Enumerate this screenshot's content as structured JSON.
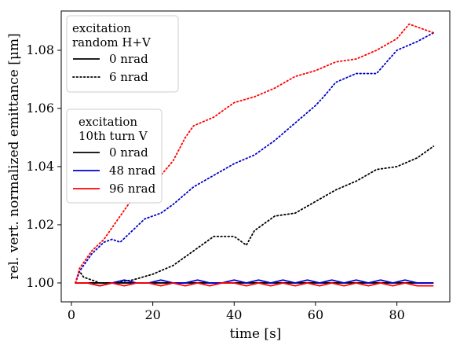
{
  "chart_data": {
    "type": "line",
    "xlabel": "time [s]",
    "ylabel": "rel. vert. normalized emittance [μm]",
    "xlim": [
      -2.5,
      93
    ],
    "ylim": [
      0.9935,
      1.0935
    ],
    "xticks": [
      0,
      20,
      40,
      60,
      80
    ],
    "yticks": [
      1.0,
      1.02,
      1.04,
      1.06,
      1.08
    ],
    "ytick_labels": [
      "1.00",
      "1.02",
      "1.04",
      "1.06",
      "1.08"
    ],
    "grid": false,
    "legends": [
      {
        "title_lines": [
          "excitation",
          "random H+V"
        ],
        "placement": "top-left",
        "entries": [
          {
            "label": "0 nrad",
            "color": "#000000",
            "style": "solid"
          },
          {
            "label": "6 nrad",
            "color": "#000000",
            "style": "dotted"
          }
        ]
      },
      {
        "title_lines": [
          "excitation",
          "10th turn V"
        ],
        "placement": "center-left",
        "entries": [
          {
            "label": "0 nrad",
            "color": "#000000",
            "style": "solid"
          },
          {
            "label": "48 nrad",
            "color": "#0000cc",
            "style": "solid"
          },
          {
            "label": "96 nrad",
            "color": "#ff0000",
            "style": "solid"
          }
        ]
      }
    ],
    "series": [
      {
        "color": "#000000",
        "style": "dotted",
        "x": [
          1,
          2,
          3,
          5,
          7,
          10,
          15,
          20,
          25,
          30,
          35,
          40,
          43,
          45,
          50,
          55,
          60,
          65,
          70,
          75,
          80,
          85,
          89
        ],
        "y": [
          1.0,
          1.004,
          1.002,
          1.001,
          1.0,
          1.0,
          1.001,
          1.003,
          1.006,
          1.011,
          1.016,
          1.016,
          1.013,
          1.018,
          1.023,
          1.024,
          1.028,
          1.032,
          1.035,
          1.039,
          1.04,
          1.043,
          1.047
        ]
      },
      {
        "color": "#0000cc",
        "style": "dotted",
        "x": [
          1,
          2,
          5,
          8,
          10,
          12,
          15,
          18,
          20,
          22,
          25,
          30,
          35,
          40,
          45,
          50,
          55,
          60,
          62,
          65,
          70,
          75,
          80,
          85,
          89
        ],
        "y": [
          1.0,
          1.004,
          1.01,
          1.014,
          1.015,
          1.014,
          1.018,
          1.022,
          1.023,
          1.024,
          1.027,
          1.033,
          1.037,
          1.041,
          1.044,
          1.049,
          1.055,
          1.061,
          1.064,
          1.069,
          1.072,
          1.072,
          1.08,
          1.083,
          1.086
        ]
      },
      {
        "color": "#ff0000",
        "style": "dotted",
        "x": [
          1,
          2,
          5,
          8,
          10,
          12,
          15,
          18,
          20,
          22,
          25,
          28,
          30,
          35,
          40,
          45,
          50,
          55,
          60,
          65,
          70,
          75,
          80,
          83,
          85,
          89
        ],
        "y": [
          1.0,
          1.005,
          1.011,
          1.015,
          1.019,
          1.023,
          1.029,
          1.033,
          1.035,
          1.037,
          1.042,
          1.05,
          1.054,
          1.057,
          1.062,
          1.064,
          1.067,
          1.071,
          1.073,
          1.076,
          1.077,
          1.08,
          1.084,
          1.089,
          1.088,
          1.086
        ]
      },
      {
        "color": "#000000",
        "style": "solid",
        "x": [
          1,
          5,
          10,
          15,
          20,
          25,
          30,
          35,
          40,
          45,
          50,
          55,
          60,
          65,
          70,
          75,
          80,
          85,
          89
        ],
        "y": [
          1.0,
          1.0,
          1.0,
          1.0,
          1.0,
          1.0,
          1.0,
          1.0,
          1.0,
          1.0,
          1.0,
          1.0,
          1.0,
          1.0,
          1.0,
          1.0,
          1.0,
          1.0,
          1.0
        ]
      },
      {
        "color": "#0000cc",
        "style": "solid",
        "x": [
          1,
          4,
          7,
          10,
          13,
          16,
          19,
          22,
          25,
          28,
          31,
          34,
          37,
          40,
          43,
          46,
          49,
          52,
          55,
          58,
          61,
          64,
          67,
          70,
          73,
          76,
          79,
          82,
          85,
          89
        ],
        "y": [
          1.0,
          1.0,
          0.999,
          1.0,
          1.001,
          1.0,
          1.0,
          1.001,
          1.0,
          1.0,
          1.001,
          1.0,
          1.0,
          1.001,
          1.0,
          1.001,
          1.0,
          1.001,
          1.0,
          1.001,
          1.0,
          1.001,
          1.0,
          1.001,
          1.0,
          1.001,
          1.0,
          1.001,
          1.0,
          1.0
        ]
      },
      {
        "color": "#ff0000",
        "style": "solid",
        "x": [
          1,
          4,
          7,
          10,
          13,
          16,
          19,
          22,
          25,
          28,
          31,
          34,
          37,
          40,
          43,
          46,
          49,
          52,
          55,
          58,
          61,
          64,
          67,
          70,
          73,
          76,
          79,
          82,
          85,
          89
        ],
        "y": [
          1.0,
          1.0,
          0.999,
          1.0,
          0.999,
          1.0,
          1.0,
          0.999,
          1.0,
          0.999,
          1.0,
          0.999,
          1.0,
          1.0,
          0.999,
          1.0,
          0.999,
          1.0,
          0.999,
          1.0,
          0.999,
          1.0,
          0.999,
          1.0,
          0.999,
          1.0,
          0.999,
          1.0,
          0.999,
          0.999
        ]
      }
    ]
  }
}
